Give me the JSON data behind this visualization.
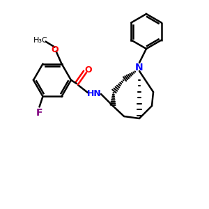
{
  "background_color": "#ffffff",
  "atom_colors": {
    "N": "#0000ff",
    "O": "#ff0000",
    "F": "#7f007f",
    "C": "#000000"
  },
  "bond_width": 1.8,
  "figsize": [
    3.0,
    3.0
  ],
  "dpi": 100
}
